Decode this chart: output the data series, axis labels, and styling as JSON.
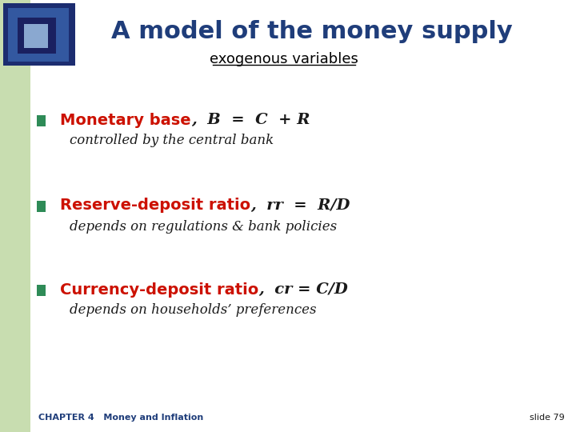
{
  "title": "A model of the money supply",
  "subtitle": "exogenous variables",
  "title_color": "#1f3d7a",
  "subtitle_color": "#000000",
  "bg_color": "#ffffff",
  "left_bar_color": "#c8ddb0",
  "bullet_color": "#2e8b57",
  "red_color": "#cc1100",
  "black_color": "#1a1a1a",
  "dark_blue": "#1f3d7a",
  "footer_left": "CHAPTER 4   Money and Inflation",
  "footer_right": "slide 79",
  "bullet1_bold": "Monetary base",
  "bullet1_formula": ",  B  =  C  + R",
  "bullet1_sub": "controlled by the central bank",
  "bullet2_bold": "Reserve-deposit ratio",
  "bullet2_formula": ",  rr  =  R/D",
  "bullet2_sub": "depends on regulations & bank policies",
  "bullet3_bold": "Currency-deposit ratio",
  "bullet3_formula": ",  cr = C/D",
  "bullet3_sub": "depends on households’ preferences"
}
